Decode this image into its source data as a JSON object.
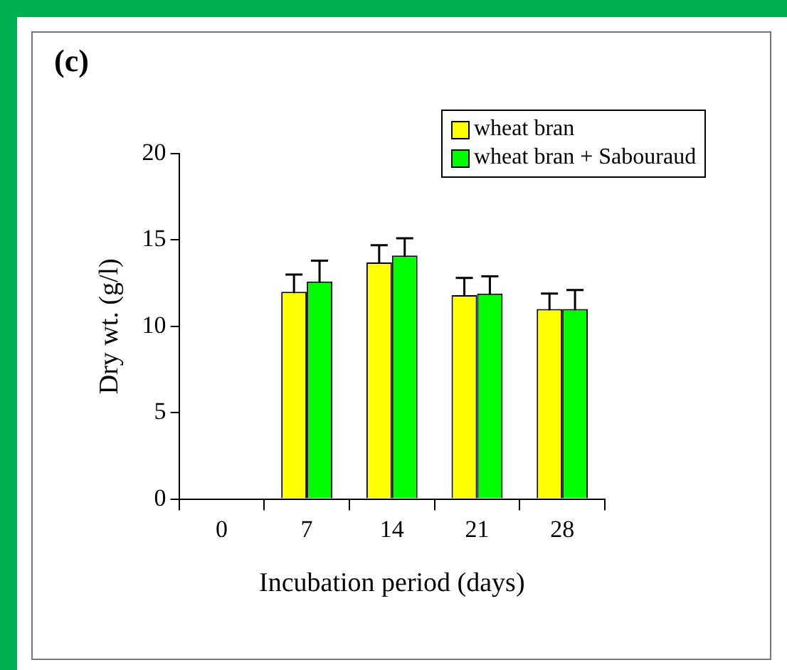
{
  "chart_data": {
    "type": "bar",
    "title": "(c)",
    "xlabel": "Incubation period (days)",
    "ylabel": "Dry wt. (g/l)",
    "categories": [
      "0",
      "7",
      "14",
      "21",
      "28"
    ],
    "series": [
      {
        "name": "wheat bran",
        "color": "#ffff00",
        "values": [
          0,
          12.0,
          13.7,
          11.8,
          11.0
        ],
        "errors": [
          null,
          1.0,
          1.0,
          1.0,
          0.9
        ]
      },
      {
        "name": "wheat bran + Sabouraud",
        "color": "#00ff00",
        "values": [
          0,
          12.6,
          14.1,
          11.9,
          11.0
        ],
        "errors": [
          null,
          1.2,
          1.0,
          1.0,
          1.1
        ]
      }
    ],
    "ylim": [
      0,
      20
    ],
    "yticks": [
      0,
      5,
      10,
      15,
      20
    ],
    "grid": false,
    "legend": "top right"
  }
}
